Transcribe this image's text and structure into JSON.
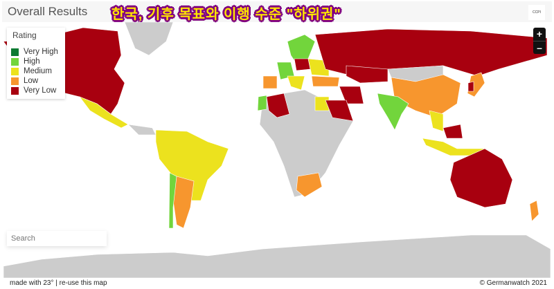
{
  "header": {
    "title": "Overall Results",
    "overlay_title": "한국, 기후 목표와 이행 수준 \"하위권\"",
    "logo_text": "CCPI"
  },
  "legend": {
    "title": "Rating",
    "items": [
      {
        "label": "Very High",
        "color": "#0c7a32"
      },
      {
        "label": "High",
        "color": "#72d53c"
      },
      {
        "label": "Medium",
        "color": "#ece21e"
      },
      {
        "label": "Low",
        "color": "#f7962e"
      },
      {
        "label": "Very Low",
        "color": "#a8000f"
      }
    ]
  },
  "no_data_color": "#cccccc",
  "zoom": {
    "in": "+",
    "out": "–"
  },
  "search": {
    "placeholder": "Search"
  },
  "footer": {
    "made_with": "made with 23° | re-use this map",
    "copyright": "© Germanwatch 2021"
  }
}
